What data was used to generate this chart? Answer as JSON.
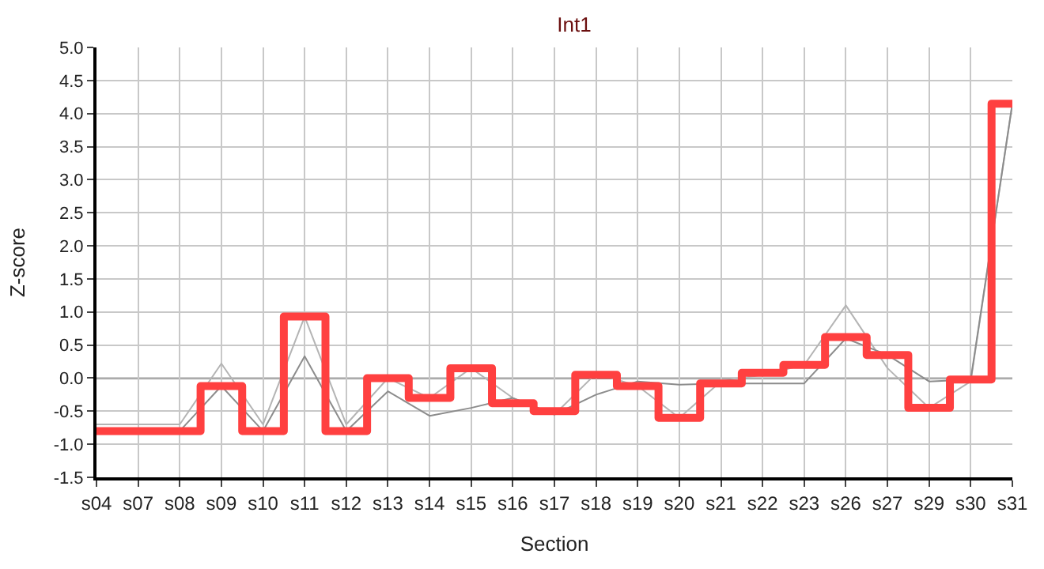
{
  "chart_data": {
    "type": "line",
    "title": "Int1",
    "xlabel": "Section",
    "ylabel": "Z-score",
    "categories": [
      "s04",
      "s07",
      "s08",
      "s09",
      "s10",
      "s11",
      "s12",
      "s13",
      "s14",
      "s15",
      "s16",
      "s17",
      "s18",
      "s19",
      "s20",
      "s21",
      "s22",
      "s23",
      "s26",
      "s27",
      "s29",
      "s30",
      "s31"
    ],
    "series": [
      {
        "color": "#b4b4b4",
        "values": [
          -0.7,
          -0.7,
          -0.7,
          0.22,
          -0.7,
          0.93,
          -0.7,
          0.0,
          -0.3,
          0.15,
          -0.3,
          -0.55,
          0.07,
          -0.12,
          -0.6,
          -0.05,
          0.05,
          0.2,
          1.1,
          0.15,
          -0.45,
          -0.05,
          4.15
        ]
      },
      {
        "color": "#8c8c8c",
        "values": [
          null,
          null,
          -0.8,
          -0.12,
          -0.8,
          0.33,
          -0.8,
          -0.2,
          -0.57,
          -0.45,
          -0.3,
          -0.55,
          -0.25,
          -0.05,
          -0.1,
          -0.08,
          -0.08,
          -0.08,
          0.6,
          0.35,
          -0.05,
          -0.02,
          4.15
        ]
      },
      {
        "type": "step",
        "color": "#ff4040",
        "values": [
          -0.8,
          -0.8,
          -0.8,
          -0.12,
          -0.8,
          0.93,
          -0.8,
          0.0,
          -0.3,
          0.15,
          -0.38,
          -0.5,
          0.05,
          -0.12,
          -0.6,
          -0.08,
          0.08,
          0.2,
          0.62,
          0.35,
          -0.45,
          -0.02,
          4.15
        ]
      }
    ],
    "ylim": [
      -1.5,
      5.0
    ],
    "yticks": [
      {
        "value": -1.5,
        "label": "-1.5"
      },
      {
        "value": -1,
        "label": "-1.0"
      },
      -0.5,
      {
        "value": 0,
        "label": "0.0"
      },
      0.5,
      {
        "value": 1,
        "label": "1.0"
      },
      1.5,
      {
        "value": 2,
        "label": "2.0"
      },
      2.5,
      {
        "value": 3,
        "label": "3.0"
      },
      3.5,
      {
        "value": 4,
        "label": "4.0"
      },
      4.5,
      {
        "value": 5,
        "label": "5.0"
      }
    ],
    "ref_lines": [
      {
        "axis": "y",
        "value": 0,
        "color": "#888888"
      }
    ],
    "grid": true,
    "marker": "none",
    "line_style": "solid"
  }
}
